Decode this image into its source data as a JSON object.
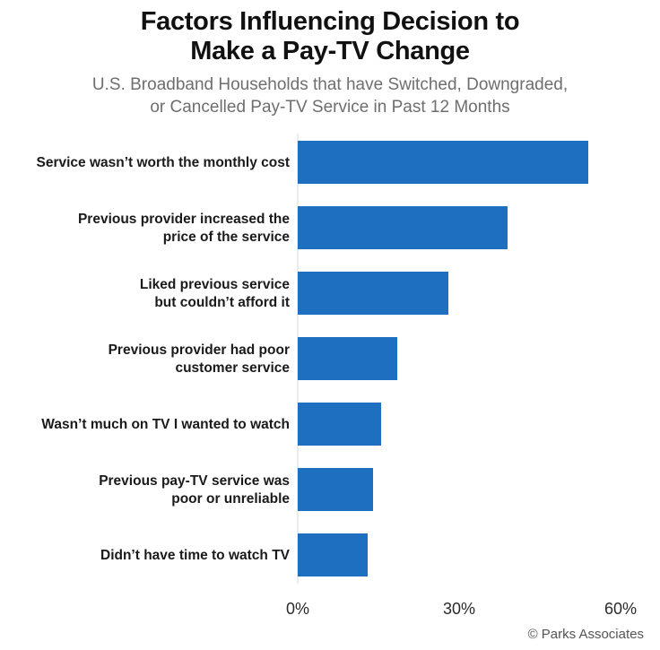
{
  "chart_data": {
    "type": "bar",
    "orientation": "horizontal",
    "title_line1": "Factors Influencing Decision to",
    "title_line2": "Make a Pay-TV Change",
    "subtitle_line1": "U.S. Broadband Households that have Switched, Downgraded,",
    "subtitle_line2": "or Cancelled Pay-TV Service in Past 12 Months",
    "categories": [
      [
        "Service wasn’t worth the monthly cost"
      ],
      [
        "Previous provider increased the",
        "price of the service"
      ],
      [
        "Liked previous service",
        "but couldn’t afford it"
      ],
      [
        "Previous provider had poor",
        "customer service"
      ],
      [
        "Wasn’t much on TV I wanted to watch"
      ],
      [
        "Previous pay-TV service was",
        "poor or unreliable"
      ],
      [
        "Didn’t have time to watch TV"
      ]
    ],
    "values": [
      54,
      39,
      28,
      18.5,
      15.5,
      14,
      13
    ],
    "xlim": [
      0,
      60
    ],
    "x_ticks": [
      0,
      30,
      60
    ],
    "x_tick_labels": [
      "0%",
      "30%",
      "60%"
    ],
    "bar_color": "#1f6fc1",
    "grid": false,
    "source": "© Parks Associates"
  }
}
